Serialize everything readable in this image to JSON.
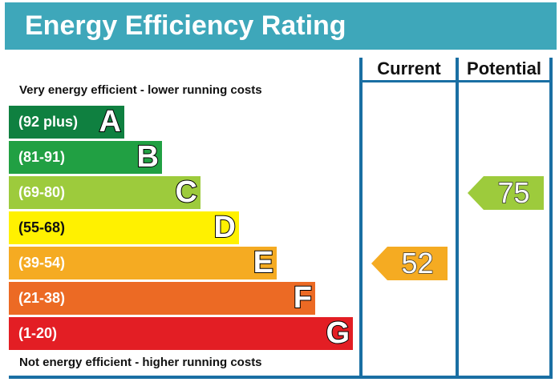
{
  "header": {
    "title": "Energy Efficiency Rating"
  },
  "columns": {
    "current_label": "Current",
    "potential_label": "Potential"
  },
  "captions": {
    "top": "Very energy efficient - lower running costs",
    "bottom": "Not energy efficient - higher running costs"
  },
  "chart_data": {
    "type": "bar",
    "title": "Energy Efficiency Rating",
    "bands": [
      {
        "letter": "A",
        "range": "(92 plus)",
        "color": "#0f8040"
      },
      {
        "letter": "B",
        "range": "(81-91)",
        "color": "#21a043"
      },
      {
        "letter": "C",
        "range": "(69-80)",
        "color": "#9dcb3c"
      },
      {
        "letter": "D",
        "range": "(55-68)",
        "color": "#fff100"
      },
      {
        "letter": "E",
        "range": "(39-54)",
        "color": "#f5ab22"
      },
      {
        "letter": "F",
        "range": "(21-38)",
        "color": "#ec6a24"
      },
      {
        "letter": "G",
        "range": "(1-20)",
        "color": "#e31e24"
      }
    ],
    "current": {
      "value": 52,
      "band": "E",
      "color": "#f5ab22"
    },
    "potential": {
      "value": 75,
      "band": "C",
      "color": "#9dcb3c"
    }
  },
  "colors": {
    "banner": "#3ea7ba",
    "frame": "#1a6fa3"
  }
}
